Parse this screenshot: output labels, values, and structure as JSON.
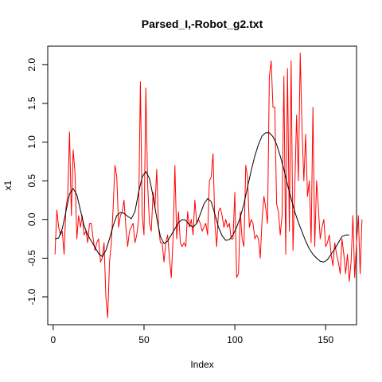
{
  "chart_data": {
    "type": "line",
    "title": "Parsed_I,-Robot_g2.txt",
    "xlabel": "Index",
    "ylabel": "x1",
    "xlim": [
      -3,
      167
    ],
    "ylim": [
      -1.36,
      2.24
    ],
    "x_ticks": [
      0,
      50,
      100,
      150
    ],
    "y_ticks": [
      -1.0,
      -0.5,
      0.0,
      0.5,
      1.0,
      1.5,
      2.0
    ],
    "x_tick_labels": [
      "0",
      "50",
      "100",
      "150"
    ],
    "y_tick_labels": [
      "-1.0",
      "-0.5",
      "0.0",
      "0.5",
      "1.0",
      "1.5",
      "2.0"
    ],
    "grid": false,
    "legend": "none",
    "series": [
      {
        "role": "raw",
        "color": "#ff0000",
        "x_start": 1,
        "values": [
          -0.45,
          0.12,
          -0.1,
          -0.2,
          -0.15,
          -0.45,
          0.15,
          0.3,
          1.13,
          0.05,
          0.9,
          0.6,
          -0.25,
          0.05,
          -0.1,
          0.05,
          -0.2,
          -0.15,
          -0.3,
          -0.05,
          -0.05,
          -0.25,
          -0.4,
          -0.3,
          -0.25,
          -0.55,
          -0.5,
          -0.3,
          -1.0,
          -1.27,
          -0.55,
          -0.3,
          0.15,
          0.7,
          0.55,
          -0.1,
          0.05,
          0.1,
          0.25,
          -0.1,
          -0.35,
          -0.15,
          -0.1,
          -0.05,
          -0.3,
          -0.2,
          0.0,
          1.78,
          0.05,
          -0.2,
          1.7,
          0.45,
          -0.05,
          -0.15,
          0.35,
          0.15,
          0.65,
          -0.1,
          -0.3,
          -0.3,
          -0.55,
          -0.3,
          -0.2,
          -0.5,
          -0.75,
          -0.25,
          0.7,
          -0.25,
          0.1,
          -0.3,
          -0.35,
          -0.3,
          -0.35,
          0.1,
          -0.1,
          0.0,
          -0.2,
          0.25,
          -0.05,
          0.0,
          -0.05,
          -0.15,
          -0.1,
          -0.05,
          -0.2,
          0.5,
          0.55,
          0.85,
          -0.05,
          -0.35,
          0.1,
          0.15,
          0.05,
          -0.1,
          0.0,
          -0.1,
          -0.05,
          -0.25,
          -0.25,
          0.35,
          -0.75,
          -0.7,
          0.1,
          -0.25,
          -0.35,
          0.7,
          0.55,
          -0.1,
          0.0,
          -0.05,
          -0.25,
          -0.2,
          -0.25,
          -0.5,
          0.0,
          0.3,
          0.15,
          -0.05,
          1.85,
          2.05,
          1.45,
          1.45,
          0.2,
          0.1,
          -0.2,
          0.05,
          1.85,
          -0.45,
          1.95,
          -0.15,
          2.05,
          -0.4,
          0.4,
          1.35,
          0.5,
          2.15,
          1.15,
          0.5,
          1.1,
          0.3,
          0.5,
          -0.3,
          1.45,
          -0.35,
          0.5,
          0.15,
          -0.25,
          -0.1,
          0.0,
          -0.35,
          -0.3,
          -0.2,
          -0.45,
          -0.6,
          -0.3,
          -0.45,
          -0.55,
          -0.7,
          -0.25,
          -0.45,
          -0.7,
          -0.45,
          -0.8,
          -0.55,
          0.05,
          -0.75,
          -0.3,
          0.05,
          -0.7,
          0.0
        ]
      },
      {
        "role": "smooth",
        "color": "#000000",
        "x": [
          1,
          3,
          5,
          7,
          9,
          11,
          13,
          15,
          17,
          19,
          21,
          23,
          25,
          27,
          29,
          31,
          33,
          35,
          37,
          39,
          41,
          43,
          45,
          47,
          49,
          51,
          53,
          55,
          57,
          59,
          61,
          63,
          65,
          67,
          69,
          71,
          73,
          75,
          77,
          79,
          81,
          83,
          85,
          87,
          89,
          91,
          93,
          95,
          97,
          99,
          101,
          103,
          105,
          107,
          109,
          111,
          113,
          115,
          117,
          119,
          121,
          123,
          125,
          127,
          129,
          131,
          133,
          135,
          137,
          139,
          141,
          143,
          145,
          147,
          149,
          151,
          153,
          155,
          157,
          159,
          161,
          163
        ],
        "values": [
          -0.25,
          -0.24,
          -0.12,
          0.1,
          0.33,
          0.4,
          0.32,
          0.12,
          -0.08,
          -0.2,
          -0.28,
          -0.36,
          -0.44,
          -0.48,
          -0.4,
          -0.25,
          -0.08,
          0.05,
          0.09,
          0.08,
          0.04,
          0.01,
          0.1,
          0.35,
          0.55,
          0.62,
          0.53,
          0.3,
          0.02,
          -0.22,
          -0.31,
          -0.28,
          -0.2,
          -0.12,
          -0.04,
          0.0,
          -0.01,
          -0.07,
          -0.1,
          -0.05,
          0.07,
          0.2,
          0.27,
          0.23,
          0.07,
          -0.1,
          -0.21,
          -0.27,
          -0.26,
          -0.2,
          -0.1,
          0.03,
          0.2,
          0.42,
          0.63,
          0.82,
          0.97,
          1.08,
          1.12,
          1.12,
          1.07,
          0.97,
          0.82,
          0.65,
          0.45,
          0.27,
          0.1,
          -0.04,
          -0.16,
          -0.28,
          -0.38,
          -0.45,
          -0.5,
          -0.54,
          -0.55,
          -0.52,
          -0.45,
          -0.38,
          -0.3,
          -0.22,
          -0.2,
          -0.2
        ]
      }
    ]
  }
}
